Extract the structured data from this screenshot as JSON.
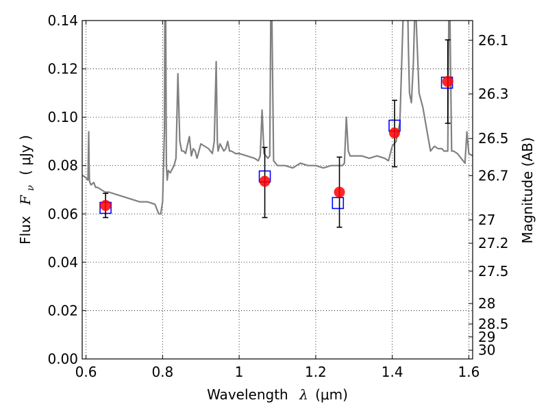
{
  "chart_data": {
    "type": "scatter",
    "xlabel_prefix": "Wavelength",
    "xlabel_symbol": "λ",
    "xlabel_unit": "(μm)",
    "ylabel_prefix": "Flux",
    "ylabel_symbol": "F",
    "ylabel_subscript": "ν",
    "ylabel_unit": "( μJy )",
    "y2label": "Magnitude (AB)",
    "xlim": [
      0.59,
      1.61
    ],
    "ylim": [
      0.0,
      0.14
    ],
    "grid": true,
    "x_ticks": [
      0.6,
      0.8,
      1.0,
      1.2,
      1.4,
      1.6
    ],
    "x_tick_labels": [
      "0.6",
      "0.8",
      "1",
      "1.2",
      "1.4",
      "1.6"
    ],
    "y_ticks": [
      0.0,
      0.02,
      0.04,
      0.06,
      0.08,
      0.1,
      0.12,
      0.14
    ],
    "y_tick_labels": [
      "0.00",
      "0.02",
      "0.04",
      "0.06",
      "0.08",
      "0.10",
      "0.12",
      "0.14"
    ],
    "mag_ticks": [
      26.1,
      26.3,
      26.5,
      26.7,
      27,
      27.2,
      27.5,
      28,
      28.5,
      29,
      30
    ],
    "mag_tick_labels": [
      "26.1",
      "26.3",
      "26.5",
      "26.7",
      "27",
      "27.2",
      "27.5",
      "28",
      "28.5",
      "29",
      "30"
    ],
    "series": [
      {
        "kind": "line",
        "color": "#808080",
        "x": [
          0.59,
          0.6,
          0.605,
          0.607,
          0.608,
          0.609,
          0.61,
          0.613,
          0.62,
          0.625,
          0.63,
          0.64,
          0.65,
          0.66,
          0.68,
          0.7,
          0.72,
          0.74,
          0.76,
          0.78,
          0.79,
          0.795,
          0.8,
          0.805,
          0.806,
          0.808,
          0.81,
          0.812,
          0.815,
          0.82,
          0.83,
          0.835,
          0.84,
          0.845,
          0.85,
          0.855,
          0.86,
          0.87,
          0.875,
          0.88,
          0.885,
          0.89,
          0.9,
          0.91,
          0.92,
          0.93,
          0.935,
          0.94,
          0.943,
          0.945,
          0.95,
          0.96,
          0.965,
          0.97,
          0.975,
          0.98,
          0.99,
          1.0,
          1.02,
          1.04,
          1.05,
          1.055,
          1.06,
          1.065,
          1.07,
          1.075,
          1.08,
          1.083,
          1.085,
          1.09,
          1.095,
          1.1,
          1.12,
          1.14,
          1.16,
          1.18,
          1.2,
          1.22,
          1.24,
          1.25,
          1.26,
          1.27,
          1.275,
          1.28,
          1.285,
          1.29,
          1.3,
          1.32,
          1.34,
          1.36,
          1.38,
          1.39,
          1.4,
          1.41,
          1.42,
          1.43,
          1.44,
          1.442,
          1.445,
          1.45,
          1.455,
          1.46,
          1.47,
          1.48,
          1.49,
          1.5,
          1.51,
          1.52,
          1.53,
          1.535,
          1.54,
          1.545,
          1.548,
          1.55,
          1.555,
          1.56,
          1.57,
          1.58,
          1.59,
          1.595,
          1.6,
          1.61
        ],
        "y": [
          0.076,
          0.075,
          0.074,
          0.094,
          0.08,
          0.074,
          0.073,
          0.072,
          0.073,
          0.071,
          0.071,
          0.07,
          0.069,
          0.069,
          0.068,
          0.067,
          0.066,
          0.065,
          0.065,
          0.064,
          0.06,
          0.06,
          0.065,
          0.095,
          0.15,
          0.15,
          0.08,
          0.074,
          0.078,
          0.077,
          0.08,
          0.083,
          0.118,
          0.09,
          0.086,
          0.086,
          0.085,
          0.092,
          0.084,
          0.087,
          0.086,
          0.083,
          0.089,
          0.088,
          0.087,
          0.085,
          0.09,
          0.123,
          0.09,
          0.086,
          0.089,
          0.086,
          0.087,
          0.09,
          0.086,
          0.086,
          0.085,
          0.085,
          0.084,
          0.083,
          0.082,
          0.084,
          0.103,
          0.085,
          0.084,
          0.083,
          0.084,
          0.15,
          0.15,
          0.082,
          0.081,
          0.08,
          0.08,
          0.079,
          0.081,
          0.08,
          0.08,
          0.079,
          0.08,
          0.08,
          0.08,
          0.08,
          0.081,
          0.1,
          0.086,
          0.084,
          0.084,
          0.084,
          0.083,
          0.084,
          0.083,
          0.082,
          0.088,
          0.09,
          0.098,
          0.15,
          0.15,
          0.13,
          0.11,
          0.106,
          0.122,
          0.15,
          0.11,
          0.104,
          0.095,
          0.086,
          0.088,
          0.087,
          0.087,
          0.086,
          0.086,
          0.086,
          0.15,
          0.15,
          0.086,
          0.086,
          0.085,
          0.083,
          0.081,
          0.094,
          0.085,
          0.084
        ]
      },
      {
        "kind": "boxes",
        "name": "",
        "color": "#0000ff",
        "x": [
          0.651,
          1.067,
          1.258,
          1.406,
          1.543
        ],
        "y": [
          0.0625,
          0.0755,
          0.0645,
          0.0965,
          0.1143
        ]
      },
      {
        "kind": "points",
        "name": "",
        "color": "#ff0000",
        "x": [
          0.651,
          1.067,
          1.262,
          1.406,
          1.545
        ],
        "y": [
          0.0635,
          0.0735,
          0.069,
          0.0935,
          0.1148
        ],
        "err_lo": [
          0.0585,
          0.0585,
          0.0545,
          0.0795,
          0.0975
        ],
        "err_hi": [
          0.0685,
          0.0875,
          0.0835,
          0.107,
          0.132
        ]
      }
    ]
  }
}
